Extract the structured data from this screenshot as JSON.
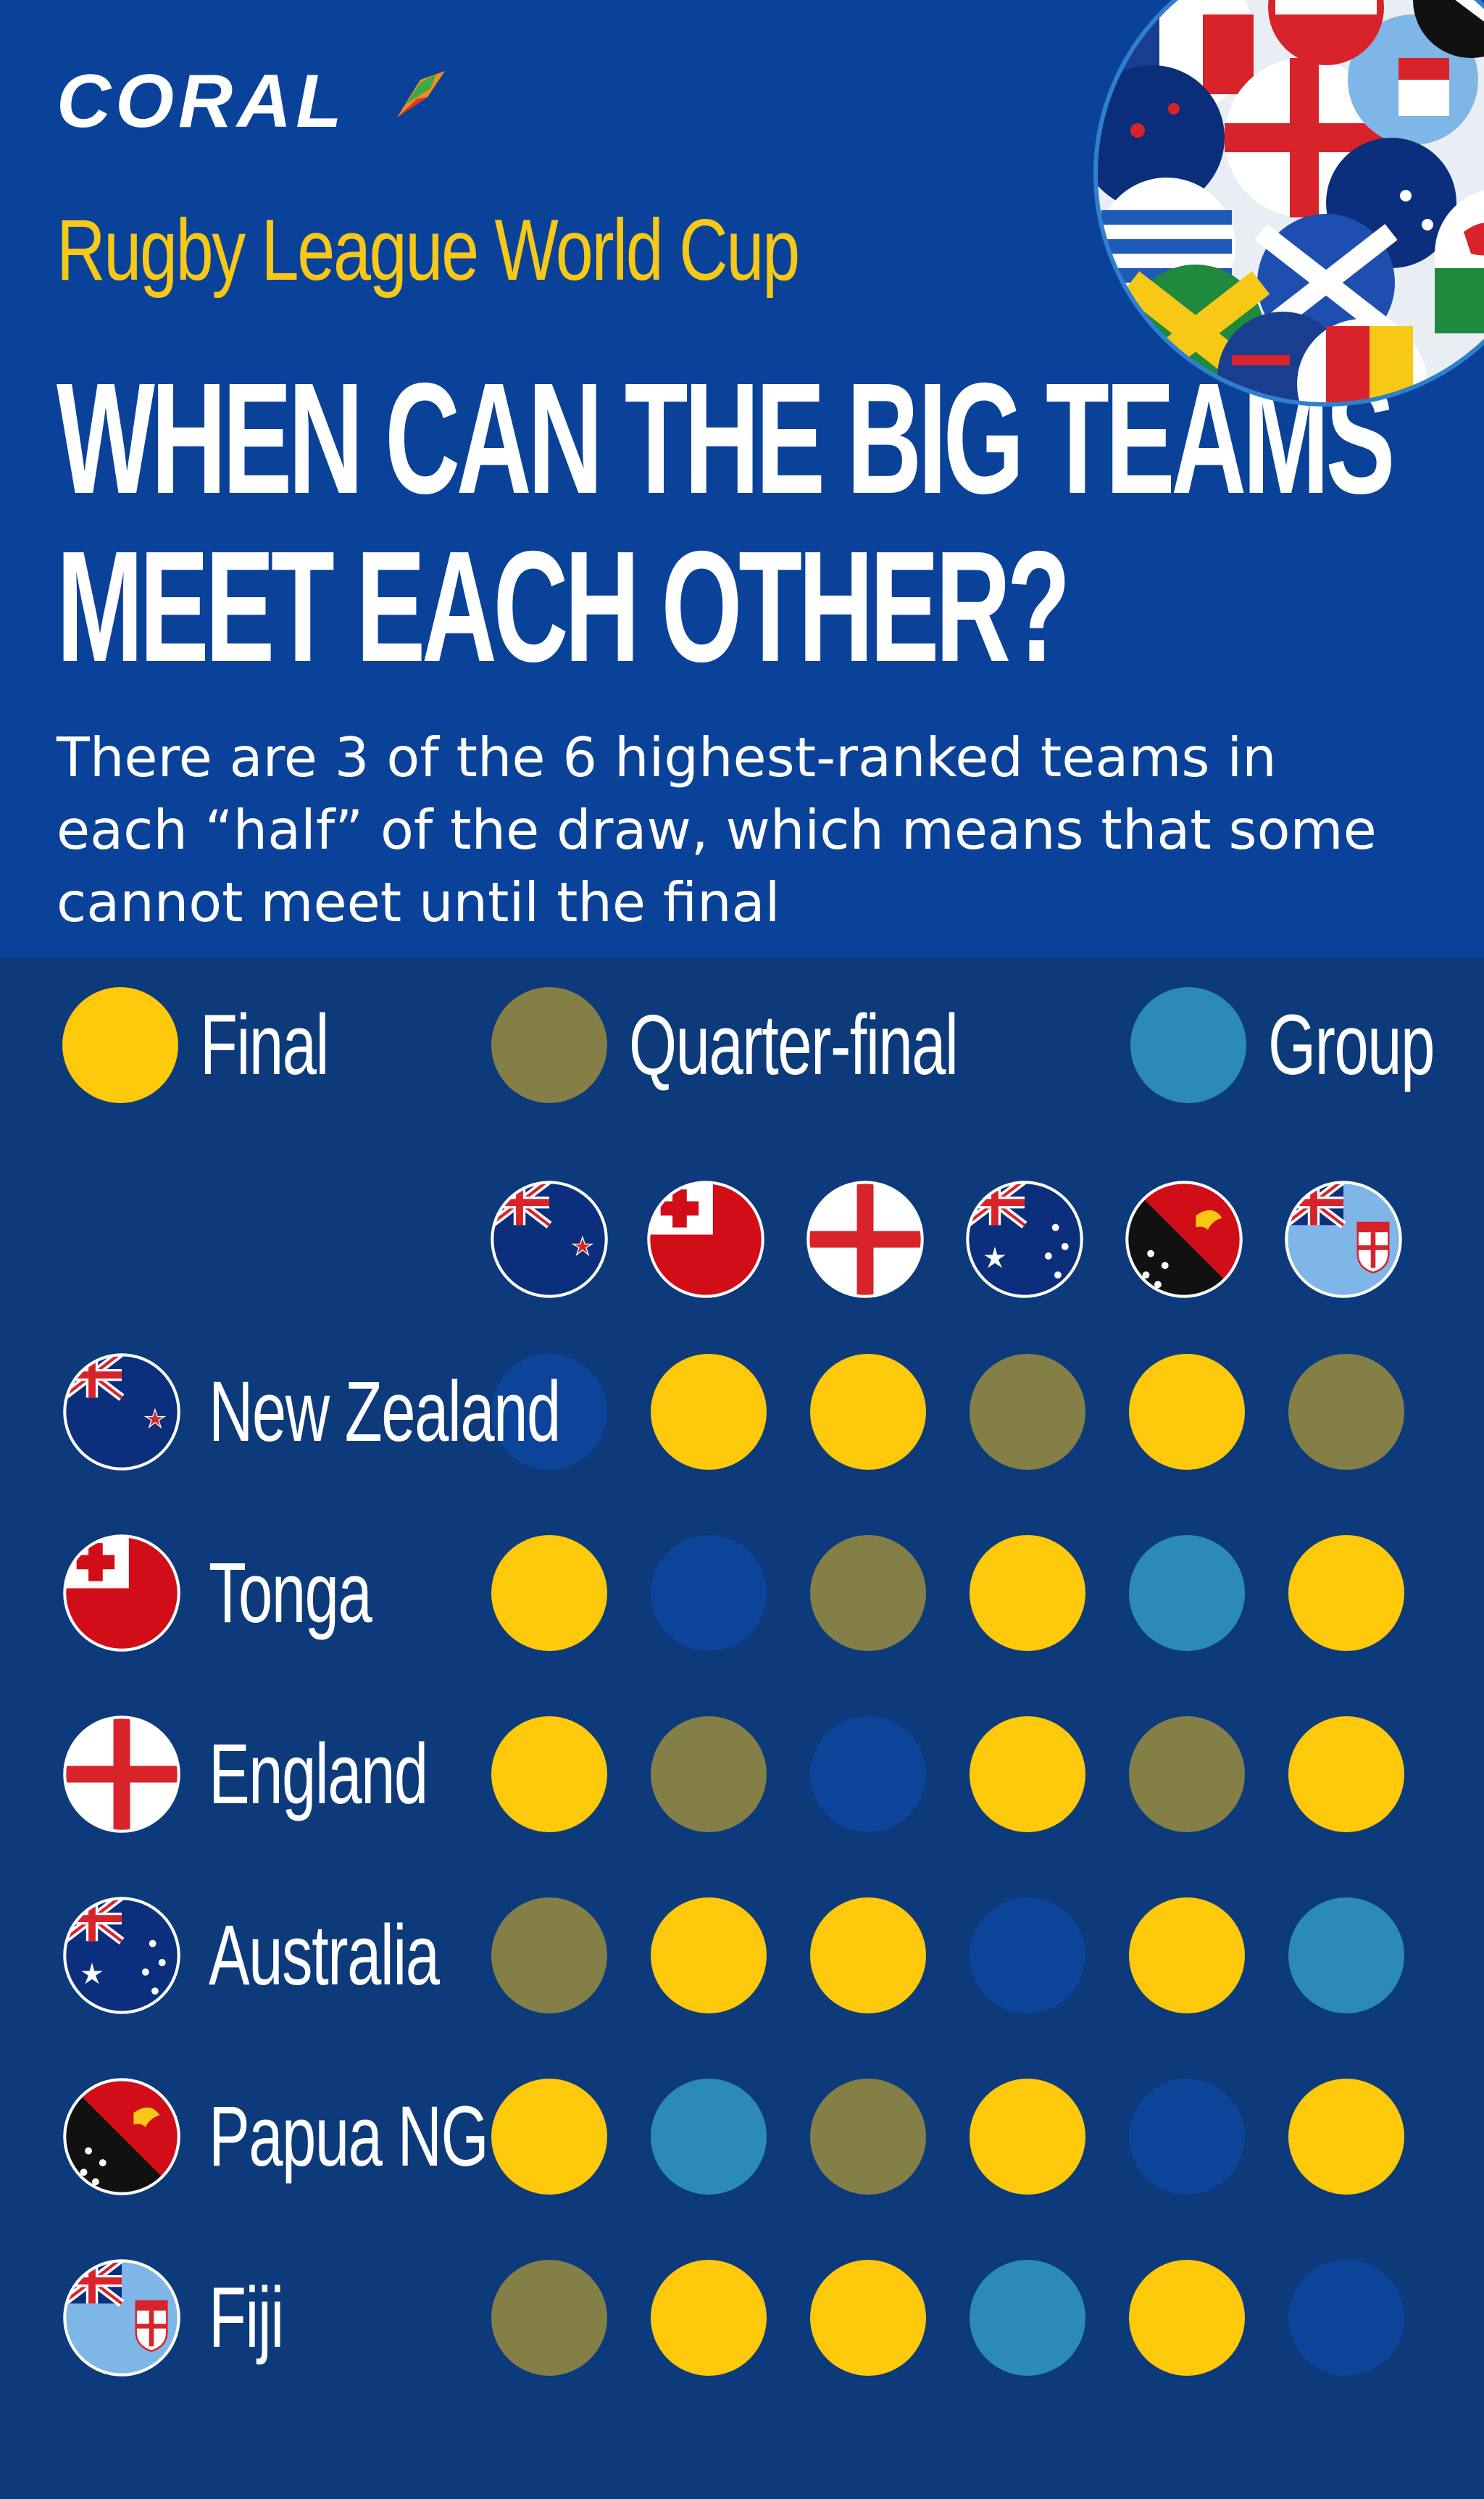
{
  "brand": "CORAL",
  "subtitle": "Rugby League World Cup",
  "title_line1": "WHEN CAN THE BIG TEAMS",
  "title_line2": "MEET EACH OTHER?",
  "intro": "There are 3 of the 6 highest-ranked teams in each “half” of the draw, which means that some cannot meet until the final",
  "colors": {
    "header_bg": "#0a4299",
    "body_bg": "#0c3a7a",
    "final": "#fec80b",
    "quarter_final": "#837f46",
    "group": "#2b8ab8",
    "self": "#0b4499"
  },
  "legend": [
    {
      "key": "final",
      "label": "Final"
    },
    {
      "key": "quarter_final",
      "label": "Quarter-final"
    },
    {
      "key": "group",
      "label": "Group"
    }
  ],
  "chart_data": {
    "type": "heatmap",
    "description_of_values": "F = Final, Q = Quarter-final, G = Group, - = same team",
    "teams": [
      "New Zealand",
      "Tonga",
      "England",
      "Australia",
      "Papua NG",
      "Fiji"
    ],
    "flag_icons": [
      "new-zealand-flag-icon",
      "tonga-flag-icon",
      "england-flag-icon",
      "australia-flag-icon",
      "papua-new-guinea-flag-icon",
      "fiji-flag-icon"
    ],
    "matrix": [
      [
        "-",
        "F",
        "F",
        "Q",
        "F",
        "Q"
      ],
      [
        "F",
        "-",
        "Q",
        "F",
        "G",
        "F"
      ],
      [
        "F",
        "Q",
        "-",
        "F",
        "Q",
        "F"
      ],
      [
        "Q",
        "F",
        "F",
        "-",
        "F",
        "G"
      ],
      [
        "F",
        "G",
        "Q",
        "F",
        "-",
        "F"
      ],
      [
        "Q",
        "F",
        "F",
        "G",
        "F",
        "-"
      ]
    ]
  }
}
